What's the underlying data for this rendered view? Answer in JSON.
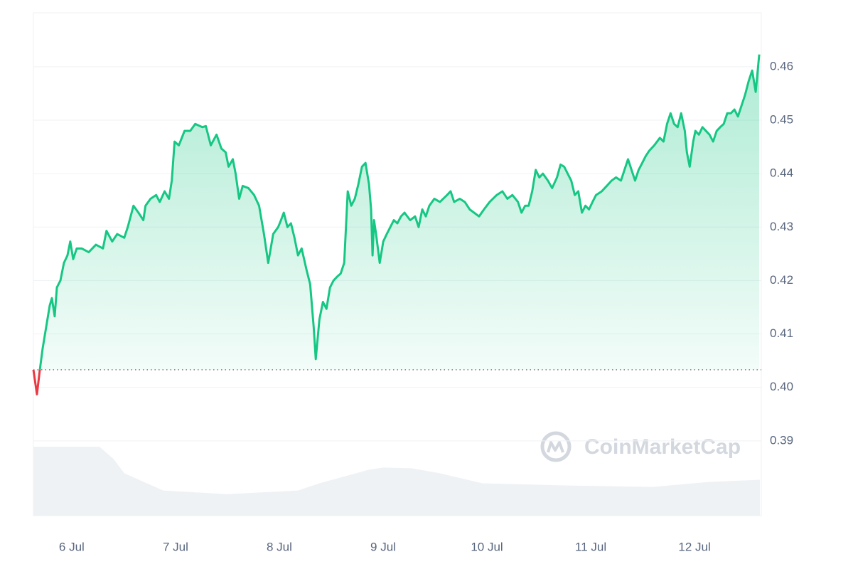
{
  "chart_data": {
    "type": "line",
    "xlim": [
      5.631,
      12.643
    ],
    "xticks": [
      {
        "value": 6,
        "label": "6 Jul"
      },
      {
        "value": 7,
        "label": "7 Jul"
      },
      {
        "value": 8,
        "label": "8 Jul"
      },
      {
        "value": 9,
        "label": "9 Jul"
      },
      {
        "value": 10,
        "label": "10 Jul"
      },
      {
        "value": 11,
        "label": "11 Jul"
      },
      {
        "value": 12,
        "label": "12 Jul"
      }
    ],
    "ylim": [
      0.376,
      0.4701
    ],
    "yticks": [
      {
        "value": 0.39,
        "label": "0.39"
      },
      {
        "value": 0.4,
        "label": "0.40"
      },
      0.41,
      0.42,
      0.43,
      0.44,
      0.45,
      0.46
    ],
    "y2lim": [
      0,
      7
    ],
    "baseline": 0.4033,
    "grid": true,
    "up_color": "#16c784",
    "down_color": "#ea3943",
    "volume_color": "#eff2f5",
    "watermark": "CoinMarketCap",
    "series": [
      {
        "color": "#16c784",
        "x": [
          5.631,
          5.665,
          5.693,
          5.72,
          5.754,
          5.788,
          5.809,
          5.836,
          5.857,
          5.891,
          5.925,
          5.959,
          5.986,
          6.014,
          6.048,
          6.096,
          6.164,
          6.233,
          6.301,
          6.335,
          6.39,
          6.438,
          6.506,
          6.54,
          6.595,
          6.643,
          6.69,
          6.711,
          6.759,
          6.813,
          6.848,
          6.895,
          6.937,
          6.964,
          6.991,
          7.032,
          7.087,
          7.142,
          7.19,
          7.258,
          7.292,
          7.34,
          7.395,
          7.442,
          7.483,
          7.511,
          7.552,
          7.579,
          7.613,
          7.647,
          7.702,
          7.757,
          7.805,
          7.852,
          7.893,
          7.941,
          7.989,
          8.016,
          8.043,
          8.078,
          8.112,
          8.146,
          8.18,
          8.215,
          8.262,
          8.297,
          8.331,
          8.351,
          8.386,
          8.42,
          8.454,
          8.488,
          8.522,
          8.556,
          8.591,
          8.625,
          8.659,
          8.693,
          8.727,
          8.761,
          8.796,
          8.83,
          8.864,
          8.884,
          8.898,
          8.912,
          8.932,
          8.967,
          9.001,
          9.035,
          9.069,
          9.103,
          9.137,
          9.172,
          9.206,
          9.26,
          9.308,
          9.342,
          9.377,
          9.411,
          9.445,
          9.493,
          9.547,
          9.616,
          9.65,
          9.684,
          9.739,
          9.787,
          9.834,
          9.876,
          9.924,
          9.971,
          10.026,
          10.094,
          10.149,
          10.197,
          10.245,
          10.299,
          10.333,
          10.368,
          10.402,
          10.436,
          10.47,
          10.505,
          10.539,
          10.587,
          10.628,
          10.675,
          10.709,
          10.744,
          10.778,
          10.812,
          10.846,
          10.88,
          10.915,
          10.949,
          10.983,
          11.017,
          11.051,
          11.106,
          11.154,
          11.201,
          11.243,
          11.291,
          11.325,
          11.359,
          11.393,
          11.427,
          11.461,
          11.496,
          11.53,
          11.564,
          11.612,
          11.666,
          11.701,
          11.735,
          11.769,
          11.803,
          11.837,
          11.871,
          11.906,
          11.926,
          11.953,
          11.987,
          12.008,
          12.042,
          12.076,
          12.11,
          12.144,
          12.179,
          12.213,
          12.247,
          12.281,
          12.315,
          12.35,
          12.384,
          12.418,
          12.452,
          12.486,
          12.521,
          12.555,
          12.589,
          12.623
        ],
        "values": [
          0.4033,
          0.3987,
          0.4033,
          0.4073,
          0.4113,
          0.4153,
          0.4167,
          0.4133,
          0.4187,
          0.42,
          0.4233,
          0.4247,
          0.4273,
          0.424,
          0.426,
          0.426,
          0.4253,
          0.4267,
          0.426,
          0.4293,
          0.4273,
          0.4287,
          0.428,
          0.43,
          0.434,
          0.4327,
          0.4313,
          0.434,
          0.4353,
          0.436,
          0.4347,
          0.4367,
          0.4353,
          0.4387,
          0.446,
          0.4453,
          0.448,
          0.448,
          0.4493,
          0.4487,
          0.4489,
          0.4453,
          0.4473,
          0.4447,
          0.444,
          0.4413,
          0.4427,
          0.44,
          0.4353,
          0.4377,
          0.4373,
          0.436,
          0.434,
          0.4287,
          0.4233,
          0.4287,
          0.43,
          0.4313,
          0.4327,
          0.43,
          0.4307,
          0.428,
          0.4247,
          0.426,
          0.422,
          0.4193,
          0.4113,
          0.4053,
          0.4127,
          0.416,
          0.4147,
          0.4187,
          0.42,
          0.4207,
          0.4213,
          0.4233,
          0.4367,
          0.434,
          0.4353,
          0.438,
          0.4413,
          0.442,
          0.438,
          0.4333,
          0.4247,
          0.4313,
          0.4287,
          0.4233,
          0.4273,
          0.4287,
          0.43,
          0.4313,
          0.4307,
          0.432,
          0.4327,
          0.4313,
          0.432,
          0.43,
          0.4333,
          0.432,
          0.434,
          0.4353,
          0.4347,
          0.436,
          0.4367,
          0.4347,
          0.4353,
          0.4347,
          0.4333,
          0.4327,
          0.432,
          0.4333,
          0.4347,
          0.436,
          0.4367,
          0.4353,
          0.436,
          0.4347,
          0.4327,
          0.434,
          0.434,
          0.4367,
          0.4407,
          0.4393,
          0.44,
          0.4387,
          0.4373,
          0.4393,
          0.4417,
          0.4413,
          0.44,
          0.4387,
          0.436,
          0.4367,
          0.4327,
          0.434,
          0.4333,
          0.4347,
          0.436,
          0.4367,
          0.4377,
          0.4387,
          0.4393,
          0.4387,
          0.4407,
          0.4427,
          0.4407,
          0.4387,
          0.4407,
          0.442,
          0.4433,
          0.4443,
          0.4453,
          0.4467,
          0.446,
          0.4493,
          0.4513,
          0.4493,
          0.4487,
          0.4513,
          0.448,
          0.444,
          0.4413,
          0.446,
          0.448,
          0.4473,
          0.4487,
          0.448,
          0.4473,
          0.446,
          0.448,
          0.4487,
          0.4493,
          0.4513,
          0.4513,
          0.452,
          0.4507,
          0.4527,
          0.4547,
          0.4573,
          0.4593,
          0.4553,
          0.4623
        ]
      },
      {
        "color": "#eff2f5",
        "axis": "y2",
        "x": [
          5.631,
          5.993,
          6.267,
          6.403,
          6.506,
          6.882,
          7.497,
          8.18,
          8.386,
          8.864,
          9.001,
          9.274,
          9.547,
          9.958,
          10.778,
          11.598,
          12.144,
          12.63
        ],
        "values": [
          0.96,
          0.96,
          0.96,
          0.79,
          0.59,
          0.35,
          0.3,
          0.35,
          0.45,
          0.64,
          0.67,
          0.66,
          0.59,
          0.45,
          0.42,
          0.4,
          0.47,
          0.5
        ]
      }
    ]
  }
}
